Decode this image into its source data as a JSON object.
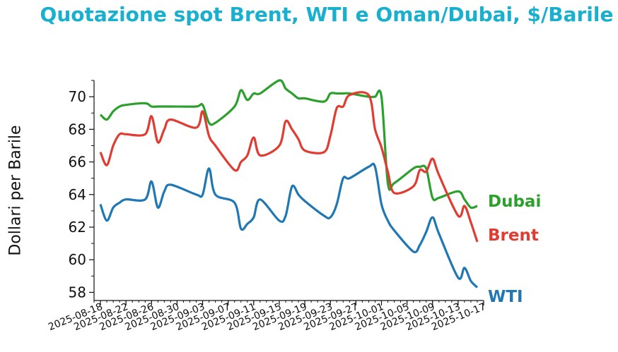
{
  "chart_data": {
    "type": "line",
    "title": "Quotazione spot Brent, WTI e Oman/Dubai, $/Barile",
    "xlabel": "",
    "ylabel": "Dollari per Barile",
    "ylim": [
      57.5,
      71
    ],
    "yticks": [
      58,
      60,
      62,
      64,
      66,
      68,
      70
    ],
    "xlim": [
      "2025-08-17",
      "2025-10-17"
    ],
    "xticks": [
      "2025-08-18",
      "2025-08-22",
      "2025-08-26",
      "2025-08-30",
      "2025-09-03",
      "2025-09-07",
      "2025-09-11",
      "2025-09-15",
      "2025-09-19",
      "2025-09-23",
      "2025-09-27",
      "2025-10-01",
      "2025-10-05",
      "2025-10-09",
      "2025-10-13",
      "2025-10-17"
    ],
    "grid": false,
    "legend": "none",
    "colors": {
      "Dubai": "#2ca02c",
      "Brent": "#e03c31",
      "WTI": "#1f77b4",
      "title": "#19b0cf"
    },
    "x": [
      "2025-08-18",
      "2025-08-19",
      "2025-08-20",
      "2025-08-21",
      "2025-08-22",
      "2025-08-25",
      "2025-08-26",
      "2025-08-27",
      "2025-08-28",
      "2025-08-29",
      "2025-09-02",
      "2025-09-03",
      "2025-09-04",
      "2025-09-05",
      "2025-09-08",
      "2025-09-09",
      "2025-09-10",
      "2025-09-11",
      "2025-09-12",
      "2025-09-15",
      "2025-09-16",
      "2025-09-17",
      "2025-09-18",
      "2025-09-19",
      "2025-09-22",
      "2025-09-23",
      "2025-09-24",
      "2025-09-25",
      "2025-09-26",
      "2025-09-29",
      "2025-09-30",
      "2025-10-01",
      "2025-10-02",
      "2025-10-03",
      "2025-10-06",
      "2025-10-07",
      "2025-10-08",
      "2025-10-09",
      "2025-10-10",
      "2025-10-13",
      "2025-10-14",
      "2025-10-15",
      "2025-10-16"
    ],
    "series": [
      {
        "name": "Dubai",
        "values": [
          68.9,
          68.6,
          69.1,
          69.4,
          69.5,
          69.6,
          69.4,
          69.4,
          69.4,
          69.4,
          69.4,
          69.5,
          68.4,
          68.4,
          69.4,
          70.4,
          69.8,
          70.2,
          70.2,
          71.0,
          70.5,
          70.2,
          69.9,
          69.9,
          69.7,
          70.2,
          70.2,
          70.2,
          70.2,
          70.0,
          70.0,
          70.0,
          64.7,
          64.7,
          65.6,
          65.7,
          65.6,
          63.8,
          63.8,
          64.2,
          63.7,
          63.2,
          63.3
        ]
      },
      {
        "name": "Brent",
        "values": [
          66.6,
          65.8,
          67.0,
          67.7,
          67.7,
          67.7,
          68.8,
          67.2,
          68.0,
          68.6,
          68.1,
          69.1,
          67.6,
          67.0,
          65.5,
          66.0,
          66.4,
          67.5,
          66.4,
          67.0,
          68.5,
          68.0,
          67.4,
          66.7,
          66.6,
          67.6,
          69.3,
          69.4,
          70.1,
          70.1,
          68.0,
          66.9,
          65.4,
          64.1,
          64.5,
          65.5,
          65.4,
          66.2,
          65.2,
          62.7,
          63.3,
          62.3,
          61.1
        ]
      },
      {
        "name": "WTI",
        "values": [
          63.4,
          62.4,
          63.2,
          63.5,
          63.7,
          63.7,
          64.8,
          63.2,
          64.2,
          64.6,
          64.0,
          64.0,
          65.6,
          64.0,
          63.5,
          61.9,
          62.2,
          62.6,
          63.7,
          62.4,
          62.7,
          64.5,
          64.0,
          63.6,
          62.7,
          62.6,
          63.4,
          65.0,
          65.0,
          65.7,
          65.7,
          63.4,
          62.4,
          61.8,
          60.5,
          60.9,
          61.7,
          62.6,
          61.6,
          58.9,
          59.5,
          58.7,
          58.3
        ]
      }
    ]
  }
}
